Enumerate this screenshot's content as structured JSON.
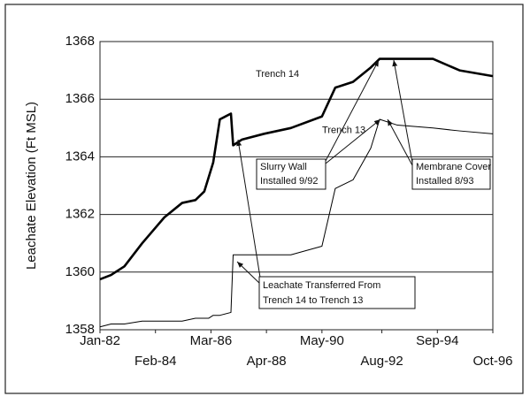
{
  "chart_data": {
    "type": "line",
    "y_label": "Leachate Elevation (Ft MSL)",
    "x": [
      "Jan-82",
      "Jun-82",
      "Dec-82",
      "Aug-83",
      "Jun-84",
      "Feb-85",
      "Aug-85",
      "Dec-85",
      "Feb-86",
      "Apr-86",
      "Jun-86",
      "Jul-86",
      "Dec-86",
      "Jan-87",
      "May-87",
      "Mar-88",
      "Mar-89",
      "May-90",
      "Nov-90",
      "Jul-91",
      "Mar-92",
      "Jul-92",
      "Mar-93",
      "Jul-94",
      "Jul-95",
      "Oct-96"
    ],
    "series": [
      {
        "name": "Trench 14",
        "color": "#000000",
        "width": 2.6,
        "values": [
          1359.75,
          1359.9,
          1360.2,
          1361.0,
          1361.9,
          1362.4,
          1362.5,
          1362.8,
          1363.3,
          1363.8,
          1364.8,
          1365.3,
          1365.5,
          1364.4,
          1364.6,
          1364.8,
          1365.0,
          1365.4,
          1366.4,
          1366.6,
          1367.1,
          1367.4,
          1367.4,
          1367.4,
          1367.0,
          1366.8
        ]
      },
      {
        "name": "Trench 13",
        "color": "#000000",
        "width": 1,
        "values": [
          1358.1,
          1358.2,
          1358.2,
          1358.3,
          1358.3,
          1358.3,
          1358.4,
          1358.4,
          1358.4,
          1358.5,
          1358.5,
          1358.5,
          1358.6,
          1360.6,
          1360.6,
          1360.6,
          1360.6,
          1360.9,
          1362.9,
          1363.2,
          1364.3,
          1365.3,
          1365.1,
          1365.0,
          1364.9,
          1364.8
        ]
      }
    ],
    "xlim": [
      "Jan-82",
      "Oct-96"
    ],
    "xticks": [
      "Jan-82",
      "Feb-84",
      "Mar-86",
      "Apr-88",
      "May-90",
      "Aug-92",
      "Sep-94",
      "Oct-96"
    ],
    "ylim": [
      1358,
      1368
    ],
    "yticks": [
      1358,
      1360,
      1362,
      1364,
      1366,
      1368
    ],
    "grid": true,
    "annotations": {
      "slurry": [
        "Slurry Wall",
        "Installed 9/92"
      ],
      "membrane": [
        "Membrane Cover",
        "Installed 8/93"
      ],
      "leachate": [
        "Leachate Transferred From",
        "Trench 14 to Trench 13"
      ]
    }
  }
}
